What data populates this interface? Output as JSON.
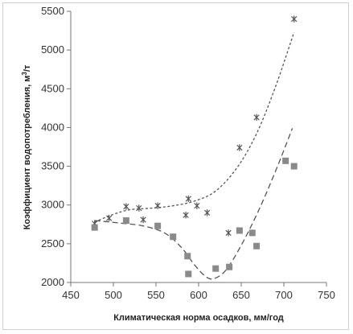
{
  "chart_data": {
    "type": "scatter",
    "title": "",
    "xlabel": "Климатическая норма осадков, мм/год",
    "ylabel_prefix": "Коэффициент водопотребления, м",
    "ylabel_sup": "3",
    "ylabel_suffix": "/т",
    "xlim": [
      450,
      750
    ],
    "ylim": [
      2000,
      5500
    ],
    "x_ticks": [
      450,
      500,
      550,
      600,
      650,
      700,
      750
    ],
    "y_ticks": [
      2000,
      2500,
      3000,
      3500,
      4000,
      4500,
      5000,
      5500
    ],
    "grid": false,
    "colors": {
      "star": "#555555",
      "square": "#8a8a8a",
      "trend": "#555555"
    },
    "series": [
      {
        "marker": "star",
        "points": [
          [
            478,
            2760
          ],
          [
            495,
            2830
          ],
          [
            515,
            2980
          ],
          [
            530,
            2960
          ],
          [
            535,
            2810
          ],
          [
            552,
            2990
          ],
          [
            585,
            2870
          ],
          [
            588,
            3080
          ],
          [
            598,
            2990
          ],
          [
            610,
            2900
          ],
          [
            635,
            2640
          ],
          [
            648,
            3740
          ],
          [
            668,
            4130
          ],
          [
            712,
            5400
          ]
        ],
        "trendline": [
          [
            478,
            2780
          ],
          [
            500,
            2880
          ],
          [
            520,
            2940
          ],
          [
            545,
            2960
          ],
          [
            570,
            2990
          ],
          [
            595,
            3050
          ],
          [
            620,
            3180
          ],
          [
            645,
            3480
          ],
          [
            668,
            3920
          ],
          [
            690,
            4520
          ],
          [
            712,
            5230
          ]
        ]
      },
      {
        "marker": "square",
        "points": [
          [
            478,
            2710
          ],
          [
            515,
            2800
          ],
          [
            552,
            2730
          ],
          [
            570,
            2590
          ],
          [
            587,
            2340
          ],
          [
            588,
            2110
          ],
          [
            620,
            2180
          ],
          [
            636,
            2200
          ],
          [
            648,
            2670
          ],
          [
            663,
            2640
          ],
          [
            668,
            2470
          ],
          [
            702,
            3570
          ],
          [
            712,
            3500
          ]
        ],
        "trendline": [
          [
            478,
            2800
          ],
          [
            505,
            2770
          ],
          [
            535,
            2730
          ],
          [
            560,
            2640
          ],
          [
            580,
            2450
          ],
          [
            595,
            2230
          ],
          [
            608,
            2080
          ],
          [
            618,
            2050
          ],
          [
            632,
            2160
          ],
          [
            650,
            2480
          ],
          [
            670,
            2920
          ],
          [
            690,
            3430
          ],
          [
            710,
            3990
          ]
        ]
      }
    ]
  }
}
